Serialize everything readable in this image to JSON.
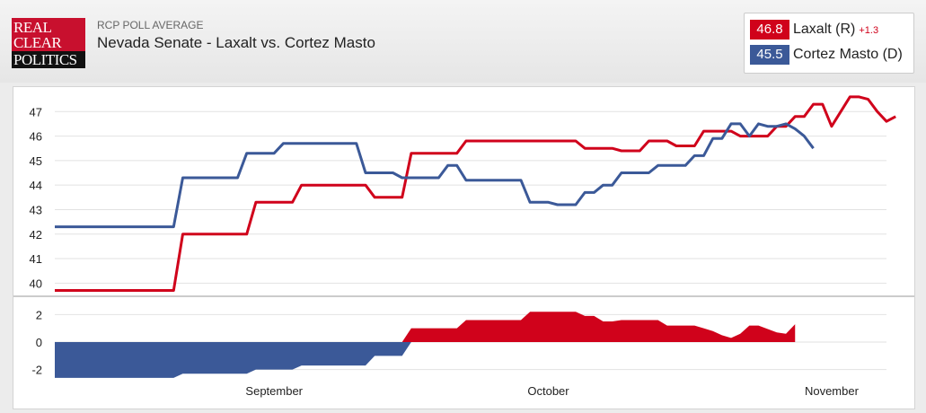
{
  "header": {
    "logo_lines": [
      "REAL",
      "CLEAR",
      "POLITICS"
    ],
    "subtitle": "RCP POLL AVERAGE",
    "title": "Nevada Senate - Laxalt vs. Cortez Masto"
  },
  "legend": {
    "items": [
      {
        "value": "46.8",
        "name": "Laxalt (R)",
        "change": "+1.3",
        "color": "#d0021b"
      },
      {
        "value": "45.5",
        "name": "Cortez Masto (D)",
        "change": "",
        "color": "#3b5998"
      }
    ]
  },
  "chart_data": [
    {
      "type": "line",
      "y_ticks": [
        40,
        41,
        42,
        43,
        44,
        45,
        46,
        47
      ],
      "ylim": [
        39.5,
        48
      ],
      "xlim": [
        "2022-08-08",
        "2022-11-07"
      ],
      "series": [
        {
          "name": "Laxalt (R)",
          "color": "#d0021b",
          "points": [
            [
              "2022-08-08",
              39.7
            ],
            [
              "2022-08-21",
              39.7
            ],
            [
              "2022-08-22",
              42.0
            ],
            [
              "2022-08-29",
              42.0
            ],
            [
              "2022-08-30",
              43.3
            ],
            [
              "2022-09-03",
              43.3
            ],
            [
              "2022-09-04",
              44.0
            ],
            [
              "2022-09-11",
              44.0
            ],
            [
              "2022-09-12",
              43.5
            ],
            [
              "2022-09-15",
              43.5
            ],
            [
              "2022-09-16",
              45.3
            ],
            [
              "2022-09-21",
              45.3
            ],
            [
              "2022-09-22",
              45.8
            ],
            [
              "2022-10-04",
              45.8
            ],
            [
              "2022-10-05",
              45.5
            ],
            [
              "2022-10-08",
              45.5
            ],
            [
              "2022-10-09",
              45.4
            ],
            [
              "2022-10-11",
              45.4
            ],
            [
              "2022-10-12",
              45.8
            ],
            [
              "2022-10-14",
              45.8
            ],
            [
              "2022-10-15",
              45.6
            ],
            [
              "2022-10-17",
              45.6
            ],
            [
              "2022-10-18",
              46.2
            ],
            [
              "2022-10-21",
              46.2
            ],
            [
              "2022-10-22",
              46.0
            ],
            [
              "2022-10-25",
              46.0
            ],
            [
              "2022-10-26",
              46.4
            ],
            [
              "2022-10-27",
              46.4
            ],
            [
              "2022-10-28",
              46.8
            ],
            [
              "2022-10-29",
              46.8
            ],
            [
              "2022-10-30",
              47.3
            ],
            [
              "2022-10-31",
              47.3
            ],
            [
              "2022-11-01",
              46.4
            ],
            [
              "2022-11-02",
              47.0
            ],
            [
              "2022-11-03",
              47.6
            ],
            [
              "2022-11-04",
              47.6
            ],
            [
              "2022-11-05",
              47.5
            ],
            [
              "2022-11-06",
              47.0
            ],
            [
              "2022-11-07",
              46.6
            ],
            [
              "2022-11-08",
              46.8
            ]
          ]
        },
        {
          "name": "Cortez Masto (D)",
          "color": "#3b5998",
          "points": [
            [
              "2022-08-08",
              42.3
            ],
            [
              "2022-08-21",
              42.3
            ],
            [
              "2022-08-22",
              44.3
            ],
            [
              "2022-08-28",
              44.3
            ],
            [
              "2022-08-29",
              45.3
            ],
            [
              "2022-09-01",
              45.3
            ],
            [
              "2022-09-02",
              45.7
            ],
            [
              "2022-09-10",
              45.7
            ],
            [
              "2022-09-11",
              44.5
            ],
            [
              "2022-09-14",
              44.5
            ],
            [
              "2022-09-15",
              44.3
            ],
            [
              "2022-09-19",
              44.3
            ],
            [
              "2022-09-20",
              44.8
            ],
            [
              "2022-09-21",
              44.8
            ],
            [
              "2022-09-22",
              44.2
            ],
            [
              "2022-09-28",
              44.2
            ],
            [
              "2022-09-29",
              43.3
            ],
            [
              "2022-10-01",
              43.3
            ],
            [
              "2022-10-02",
              43.2
            ],
            [
              "2022-10-04",
              43.2
            ],
            [
              "2022-10-05",
              43.7
            ],
            [
              "2022-10-06",
              43.7
            ],
            [
              "2022-10-07",
              44.0
            ],
            [
              "2022-10-08",
              44.0
            ],
            [
              "2022-10-09",
              44.5
            ],
            [
              "2022-10-12",
              44.5
            ],
            [
              "2022-10-13",
              44.8
            ],
            [
              "2022-10-16",
              44.8
            ],
            [
              "2022-10-17",
              45.2
            ],
            [
              "2022-10-18",
              45.2
            ],
            [
              "2022-10-19",
              45.9
            ],
            [
              "2022-10-20",
              45.9
            ],
            [
              "2022-10-21",
              46.5
            ],
            [
              "2022-10-22",
              46.5
            ],
            [
              "2022-10-23",
              46.0
            ],
            [
              "2022-10-24",
              46.5
            ],
            [
              "2022-10-25",
              46.4
            ],
            [
              "2022-10-26",
              46.4
            ],
            [
              "2022-10-27",
              46.5
            ],
            [
              "2022-10-28",
              46.3
            ],
            [
              "2022-10-29",
              46.0
            ],
            [
              "2022-10-30",
              45.5
            ]
          ]
        }
      ]
    },
    {
      "type": "area",
      "y_ticks": [
        2,
        0,
        -2
      ],
      "ylim": [
        -3,
        3
      ],
      "xlim": [
        "2022-08-08",
        "2022-11-07"
      ],
      "x_ticks": [
        "September",
        "October",
        "November"
      ],
      "x_tick_dates": [
        "2022-09-01",
        "2022-10-01",
        "2022-11-01"
      ],
      "positive_color": "#d0021b",
      "negative_color": "#3b5998",
      "points": [
        [
          "2022-08-08",
          -2.6
        ],
        [
          "2022-08-21",
          -2.6
        ],
        [
          "2022-08-22",
          -2.3
        ],
        [
          "2022-08-29",
          -2.3
        ],
        [
          "2022-08-30",
          -2.0
        ],
        [
          "2022-09-03",
          -2.0
        ],
        [
          "2022-09-04",
          -1.7
        ],
        [
          "2022-09-11",
          -1.7
        ],
        [
          "2022-09-12",
          -1.0
        ],
        [
          "2022-09-15",
          -1.0
        ],
        [
          "2022-09-16",
          1.0
        ],
        [
          "2022-09-21",
          1.0
        ],
        [
          "2022-09-22",
          1.6
        ],
        [
          "2022-09-28",
          1.6
        ],
        [
          "2022-09-29",
          2.2
        ],
        [
          "2022-10-04",
          2.2
        ],
        [
          "2022-10-05",
          1.9
        ],
        [
          "2022-10-06",
          1.9
        ],
        [
          "2022-10-07",
          1.5
        ],
        [
          "2022-10-08",
          1.5
        ],
        [
          "2022-10-09",
          1.6
        ],
        [
          "2022-10-13",
          1.6
        ],
        [
          "2022-10-14",
          1.2
        ],
        [
          "2022-10-17",
          1.2
        ],
        [
          "2022-10-18",
          1.0
        ],
        [
          "2022-10-19",
          0.8
        ],
        [
          "2022-10-20",
          0.5
        ],
        [
          "2022-10-21",
          0.3
        ],
        [
          "2022-10-22",
          0.6
        ],
        [
          "2022-10-23",
          1.2
        ],
        [
          "2022-10-24",
          1.2
        ],
        [
          "2022-10-26",
          0.7
        ],
        [
          "2022-10-27",
          0.6
        ],
        [
          "2022-10-28",
          1.3
        ]
      ]
    }
  ]
}
